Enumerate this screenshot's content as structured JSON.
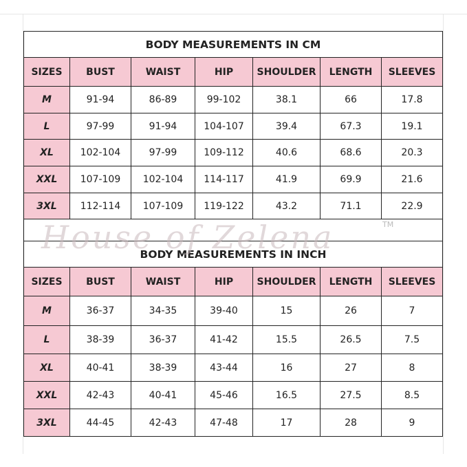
{
  "tables": [
    {
      "title": "BODY MEASUREMENTS IN CM",
      "header": [
        "SIZES",
        "BUST",
        "WAIST",
        "HIP",
        "SHOULDER",
        "LENGTH",
        "SLEEVES"
      ],
      "rows": [
        [
          "M",
          "91-94",
          "86-89",
          "99-102",
          "38.1",
          "66",
          "17.8"
        ],
        [
          "L",
          "97-99",
          "91-94",
          "104-107",
          "39.4",
          "67.3",
          "19.1"
        ],
        [
          "XL",
          "102-104",
          "97-99",
          "109-112",
          "40.6",
          "68.6",
          "20.3"
        ],
        [
          "XXL",
          "107-109",
          "102-104",
          "114-117",
          "41.9",
          "69.9",
          "21.6"
        ],
        [
          "3XL",
          "112-114",
          "107-109",
          "119-122",
          "43.2",
          "71.1",
          "22.9"
        ]
      ]
    },
    {
      "title": "BODY MEASUREMENTS IN INCH",
      "header": [
        "SIZES",
        "BUST",
        "WAIST",
        "HIP",
        "SHOULDER",
        "LENGTH",
        "SLEEVES"
      ],
      "rows": [
        [
          "M",
          "36-37",
          "34-35",
          "39-40",
          "15",
          "26",
          "7"
        ],
        [
          "L",
          "38-39",
          "36-37",
          "41-42",
          "15.5",
          "26.5",
          "7.5"
        ],
        [
          "XL",
          "40-41",
          "38-39",
          "43-44",
          "16",
          "27",
          "8"
        ],
        [
          "XXL",
          "42-43",
          "40-41",
          "45-46",
          "16.5",
          "27.5",
          "8.5"
        ],
        [
          "3XL",
          "44-45",
          "42-43",
          "47-48",
          "17",
          "28",
          "9"
        ]
      ]
    }
  ],
  "watermark": {
    "text": "House of Zelena",
    "mark": "TM"
  }
}
